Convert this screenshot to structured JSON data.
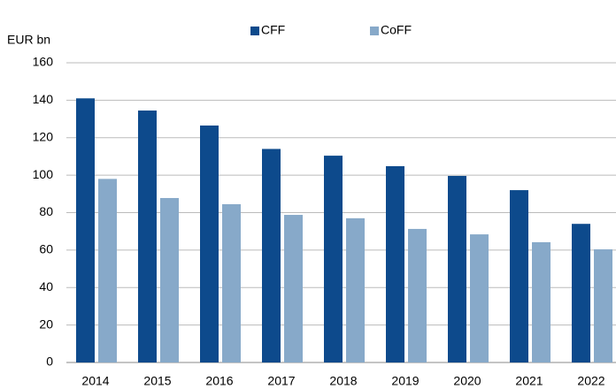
{
  "chart_data": {
    "type": "bar",
    "ylabel": "EUR bn",
    "categories": [
      "2014",
      "2015",
      "2016",
      "2017",
      "2018",
      "2019",
      "2020",
      "2021",
      "2022"
    ],
    "series": [
      {
        "name": "CFF",
        "color": "#0d4a8c",
        "values": [
          141,
          134.5,
          126.5,
          114,
          110.4,
          104.8,
          99.6,
          92,
          74
        ]
      },
      {
        "name": "CoFF",
        "color": "#87a9c9",
        "values": [
          98,
          87.8,
          84.5,
          78.8,
          77,
          71.3,
          68.4,
          64.2,
          60.4
        ]
      }
    ],
    "ylim": [
      0,
      160
    ],
    "yticks": [
      0,
      20,
      40,
      60,
      80,
      100,
      120,
      140,
      160
    ],
    "grid": true,
    "legend": "top"
  }
}
